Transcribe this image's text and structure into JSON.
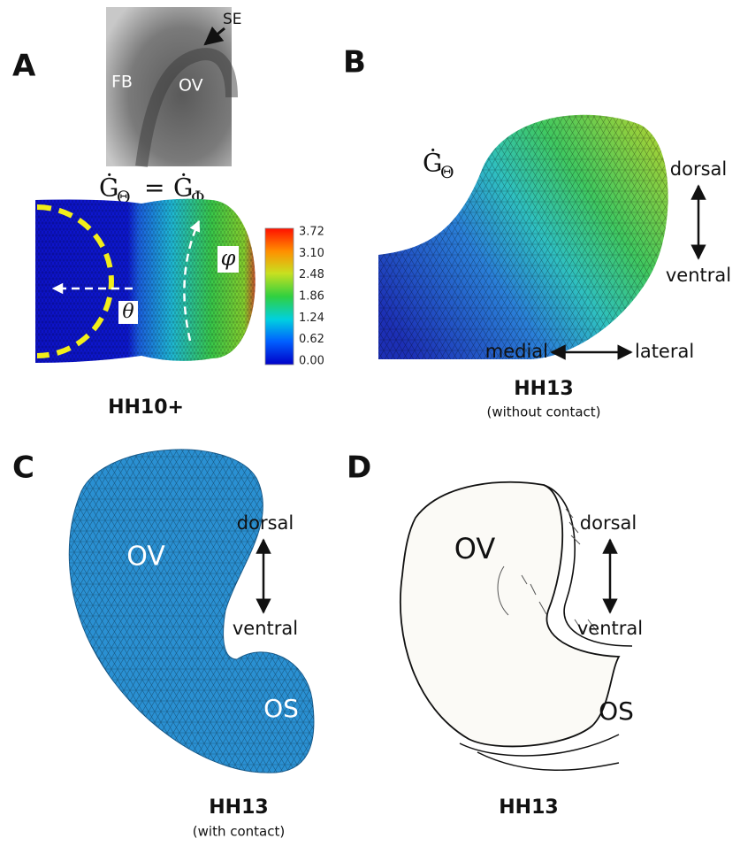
{
  "panels": [
    {
      "letter": "A",
      "photo_labels": {
        "se": "SE",
        "fb": "FB",
        "ov": "OV"
      },
      "equation": {
        "left": "Ġ",
        "left_sub": "Θ",
        "op": "=",
        "right": "Ġ",
        "right_sub": "Φ"
      },
      "angles": {
        "theta": "θ",
        "phi": "φ"
      },
      "colorbar": [
        "3.72",
        "3.10",
        "2.48",
        "1.86",
        "1.24",
        "0.62",
        "0.00"
      ],
      "caption": "HH10+"
    },
    {
      "letter": "B",
      "rate": {
        "symbol": "Ġ",
        "sub": "Θ"
      },
      "directions": {
        "dorsal": "dorsal",
        "ventral": "ventral",
        "medial": "medial",
        "lateral": "lateral"
      },
      "caption": "HH13",
      "subcaption": "(without contact)"
    },
    {
      "letter": "C",
      "labels": {
        "ov": "OV",
        "os": "OS"
      },
      "directions": {
        "dorsal": "dorsal",
        "ventral": "ventral"
      },
      "caption": "HH13",
      "subcaption": "(with contact)"
    },
    {
      "letter": "D",
      "labels": {
        "ov": "OV",
        "os": "OS"
      },
      "directions": {
        "dorsal": "dorsal",
        "ventral": "ventral"
      },
      "caption": "HH13"
    }
  ]
}
